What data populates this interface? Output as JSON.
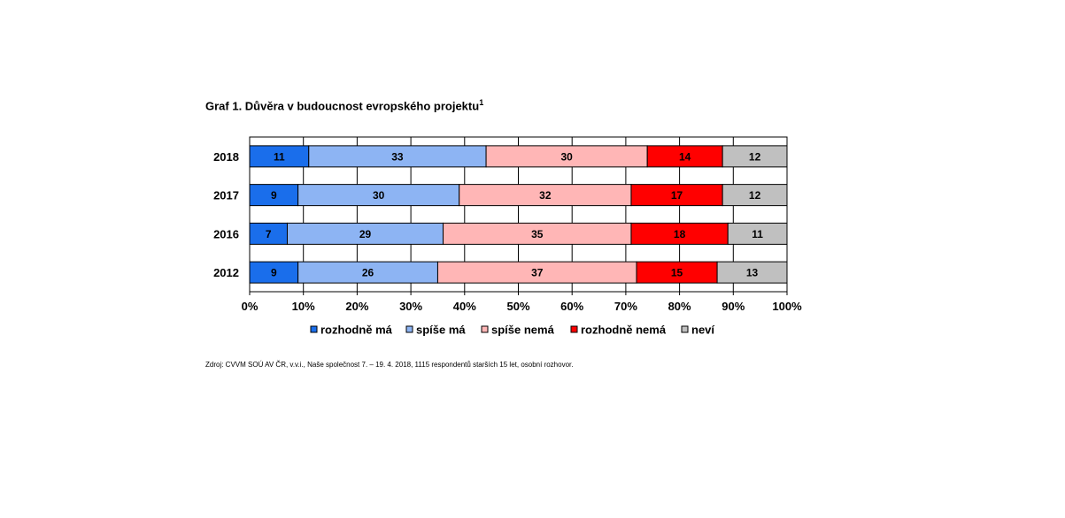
{
  "title": {
    "text": "Graf 1. Důvěra v budoucnost evropského projektu",
    "superscript": "1"
  },
  "source": "Zdroj: CVVM SOÚ AV ČR, v.v.i., Naše společnost 7. – 19. 4. 2018, 1115 respondentů starších 15 let, osobní rozhovor.",
  "chart_data": {
    "type": "bar",
    "orientation": "horizontal",
    "stacked": true,
    "normalized_100": true,
    "title": "Graf 1. Důvěra v budoucnost evropského projektu",
    "categories": [
      "2018",
      "2017",
      "2016",
      "2012"
    ],
    "series": [
      {
        "name": "rozhodně má",
        "color": "#1a6eeb",
        "values": [
          11,
          9,
          7,
          9
        ]
      },
      {
        "name": "spíše má",
        "color": "#8db4f3",
        "values": [
          33,
          30,
          29,
          26
        ]
      },
      {
        "name": "spíše nemá",
        "color": "#ffb6b6",
        "values": [
          30,
          32,
          35,
          37
        ]
      },
      {
        "name": "rozhodně nemá",
        "color": "#ff0000",
        "values": [
          14,
          17,
          18,
          15
        ]
      },
      {
        "name": "neví",
        "color": "#c0c0c0",
        "values": [
          12,
          12,
          11,
          13
        ]
      }
    ],
    "x_ticks": [
      "0%",
      "10%",
      "20%",
      "30%",
      "40%",
      "50%",
      "60%",
      "70%",
      "80%",
      "90%",
      "100%"
    ],
    "xlim": [
      0,
      100
    ],
    "grid": true,
    "legend_position": "bottom",
    "xlabel": "",
    "ylabel": ""
  }
}
